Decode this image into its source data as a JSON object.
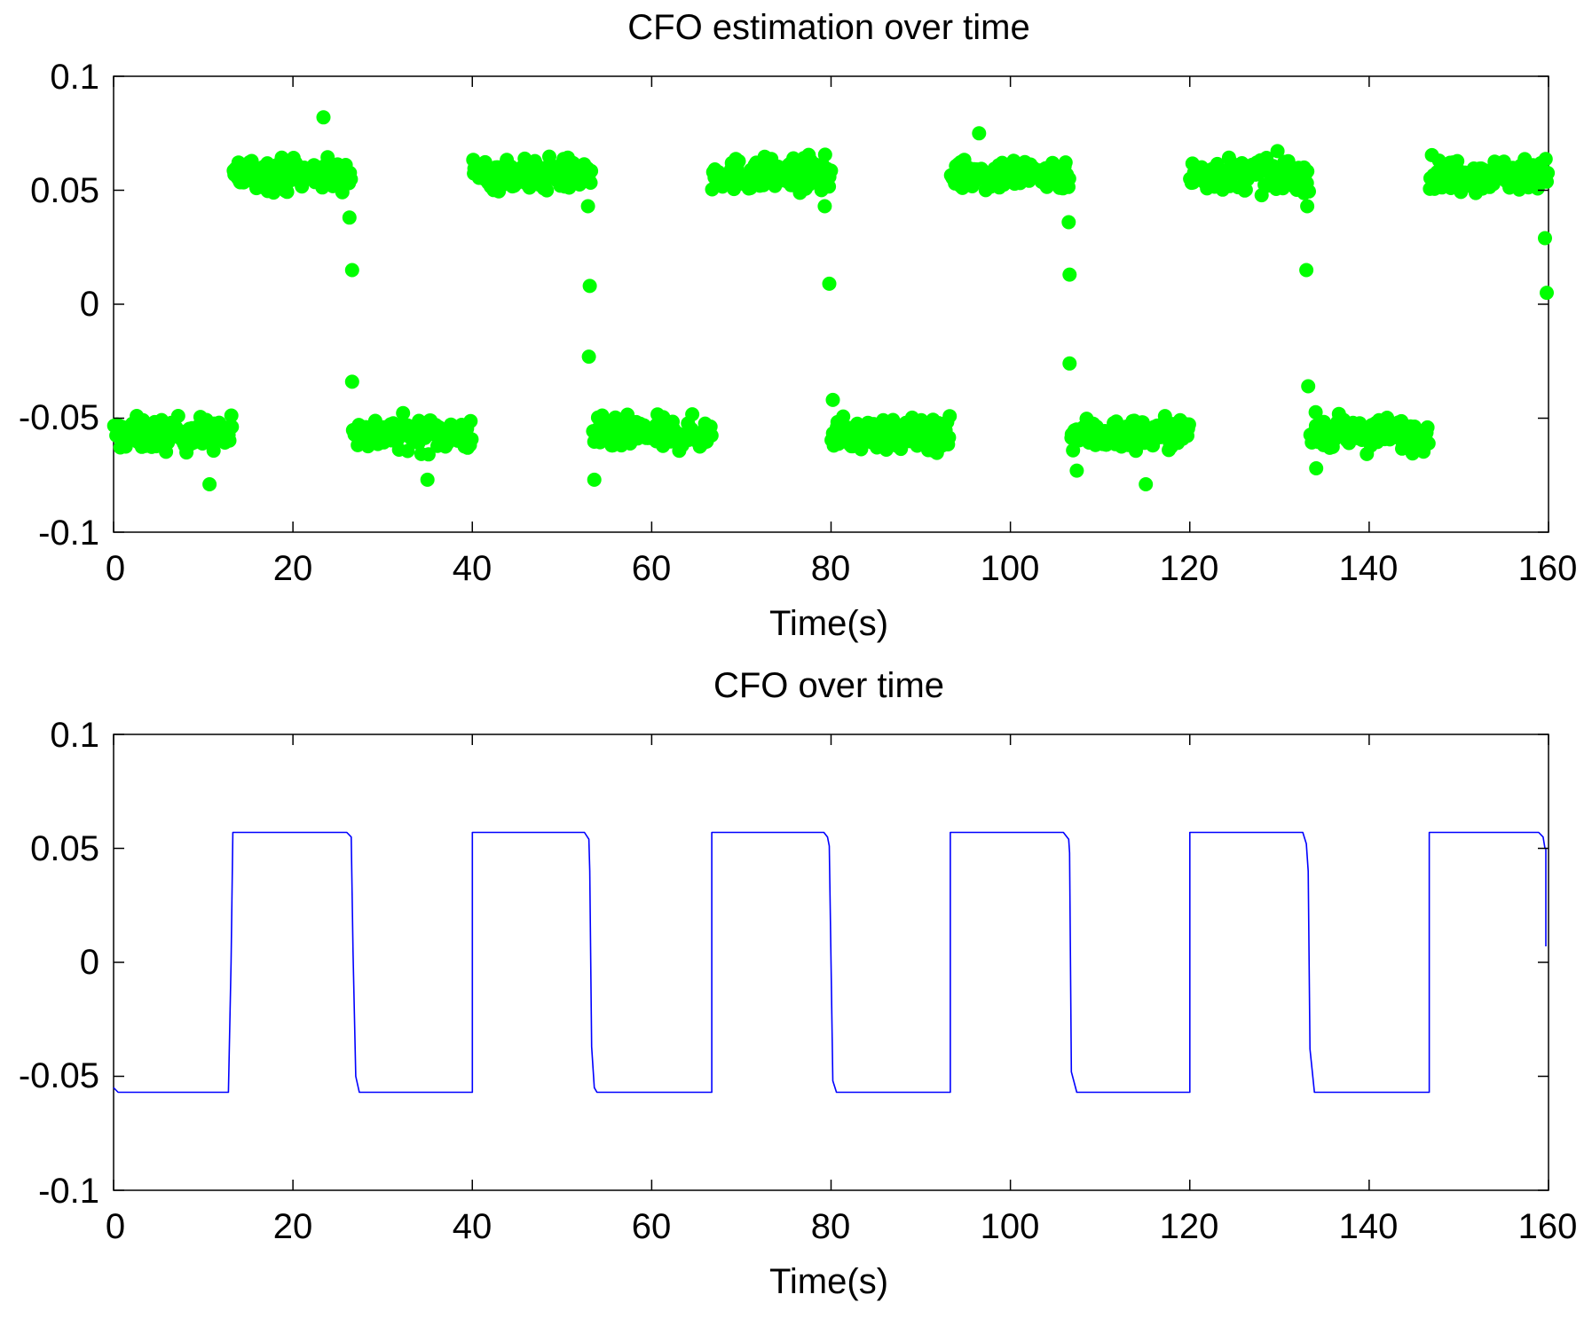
{
  "chart_data": [
    {
      "type": "scatter",
      "title": "CFO estimation over time",
      "xlabel": "Time(s)",
      "ylabel": "",
      "xlim": [
        0,
        160
      ],
      "ylim": [
        -0.1,
        0.1
      ],
      "xticks": [
        "0",
        "20",
        "40",
        "60",
        "80",
        "100",
        "120",
        "140",
        "160"
      ],
      "yticks": [
        "0.1",
        "0.05",
        "0",
        "-0.05",
        "-0.1"
      ],
      "grid": false,
      "marker_color": "#00ff00",
      "series": [
        {
          "name": "CFO estimate",
          "segments": [
            {
              "x_start": 0,
              "x_end": 13.3,
              "level": -0.057,
              "spread": 0.012
            },
            {
              "x_start": 13.3,
              "x_end": 26.5,
              "level": 0.057,
              "spread": 0.012
            },
            {
              "x_start": 26.7,
              "x_end": 40,
              "level": -0.057,
              "spread": 0.012
            },
            {
              "x_start": 40,
              "x_end": 53.3,
              "level": 0.057,
              "spread": 0.012
            },
            {
              "x_start": 53.4,
              "x_end": 66.7,
              "level": -0.057,
              "spread": 0.012
            },
            {
              "x_start": 66.7,
              "x_end": 80,
              "level": 0.057,
              "spread": 0.012
            },
            {
              "x_start": 80,
              "x_end": 93.3,
              "level": -0.057,
              "spread": 0.012
            },
            {
              "x_start": 93.3,
              "x_end": 106.6,
              "level": 0.057,
              "spread": 0.012
            },
            {
              "x_start": 106.7,
              "x_end": 120,
              "level": -0.057,
              "spread": 0.012
            },
            {
              "x_start": 120,
              "x_end": 133.3,
              "level": 0.057,
              "spread": 0.012
            },
            {
              "x_start": 133.4,
              "x_end": 146.7,
              "level": -0.057,
              "spread": 0.012
            },
            {
              "x_start": 146.7,
              "x_end": 160,
              "level": 0.057,
              "spread": 0.012
            }
          ],
          "extra_points": [
            {
              "x": 23.4,
              "y": 0.082
            },
            {
              "x": 26.3,
              "y": 0.038
            },
            {
              "x": 26.6,
              "y": 0.015
            },
            {
              "x": 26.6,
              "y": -0.034
            },
            {
              "x": 10.7,
              "y": -0.079
            },
            {
              "x": 52.9,
              "y": 0.043
            },
            {
              "x": 53.1,
              "y": 0.008
            },
            {
              "x": 53.0,
              "y": -0.023
            },
            {
              "x": 53.6,
              "y": -0.077
            },
            {
              "x": 35.0,
              "y": -0.077
            },
            {
              "x": 79.8,
              "y": 0.009
            },
            {
              "x": 79.3,
              "y": 0.043
            },
            {
              "x": 80.2,
              "y": -0.042
            },
            {
              "x": 106.5,
              "y": 0.036
            },
            {
              "x": 106.6,
              "y": 0.013
            },
            {
              "x": 106.6,
              "y": -0.026
            },
            {
              "x": 107.4,
              "y": -0.073
            },
            {
              "x": 115.1,
              "y": -0.079
            },
            {
              "x": 133.1,
              "y": 0.043
            },
            {
              "x": 133.0,
              "y": 0.015
            },
            {
              "x": 133.2,
              "y": -0.036
            },
            {
              "x": 134.1,
              "y": -0.072
            },
            {
              "x": 159.6,
              "y": 0.029
            },
            {
              "x": 159.8,
              "y": 0.005
            },
            {
              "x": 96.5,
              "y": 0.075
            }
          ]
        }
      ]
    },
    {
      "type": "line",
      "title": "CFO over time",
      "xlabel": "Time(s)",
      "ylabel": "",
      "xlim": [
        0,
        160
      ],
      "ylim": [
        -0.1,
        0.1
      ],
      "xticks": [
        "0",
        "20",
        "40",
        "60",
        "80",
        "100",
        "120",
        "140",
        "160"
      ],
      "yticks": [
        "0.1",
        "0.05",
        "0",
        "-0.05",
        "-0.1"
      ],
      "grid": false,
      "line_color": "#0000ff",
      "series": [
        {
          "name": "CFO",
          "x": [
            0,
            0.5,
            12.8,
            13.1,
            13.3,
            26.0,
            26.5,
            26.7,
            27.0,
            27.4,
            40.0,
            40.0,
            52.5,
            53.0,
            53.1,
            53.3,
            53.6,
            53.9,
            66.7,
            66.7,
            79.2,
            79.6,
            79.8,
            80.2,
            80.6,
            93.3,
            93.3,
            105.9,
            106.5,
            106.6,
            106.8,
            107.4,
            120.0,
            120.0,
            132.6,
            133.0,
            133.2,
            133.4,
            133.9,
            146.7,
            146.7,
            158.9,
            159.4,
            159.6,
            159.7,
            159.7
          ],
          "y": [
            -0.055,
            -0.057,
            -0.057,
            0.0,
            0.057,
            0.057,
            0.055,
            0.005,
            -0.05,
            -0.057,
            -0.057,
            0.057,
            0.057,
            0.054,
            0.04,
            -0.037,
            -0.055,
            -0.057,
            -0.057,
            0.057,
            0.057,
            0.055,
            0.051,
            -0.052,
            -0.057,
            -0.057,
            0.057,
            0.057,
            0.054,
            0.048,
            -0.048,
            -0.057,
            -0.057,
            0.057,
            0.057,
            0.052,
            0.04,
            -0.038,
            -0.057,
            -0.057,
            0.057,
            0.057,
            0.055,
            0.05,
            0.05,
            0.007
          ]
        }
      ]
    }
  ]
}
